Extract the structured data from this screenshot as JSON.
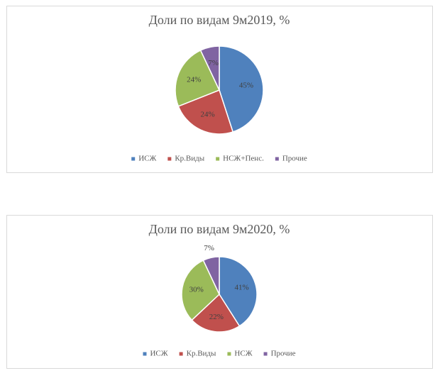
{
  "chart_data": [
    {
      "type": "pie",
      "title": "Доли по видам 9м2019, %",
      "categories": [
        "ИСЖ",
        "Кр.Виды",
        "НСЖ+Пенс.",
        "Прочие"
      ],
      "values": [
        45,
        24,
        24,
        7
      ],
      "value_labels": [
        "45%",
        "24%",
        "24%",
        "7%"
      ],
      "colors": [
        "#4f81bd",
        "#c0504d",
        "#9bbb59",
        "#8064a2"
      ],
      "legend": "bottom"
    },
    {
      "type": "pie",
      "title": "Доли по видам 9м2020, %",
      "categories": [
        "ИСЖ",
        "Кр.Виды",
        "НСЖ",
        "Прочие"
      ],
      "values": [
        41,
        22,
        30,
        7
      ],
      "value_labels": [
        "41%",
        "22%",
        "30%",
        "7%"
      ],
      "colors": [
        "#4f81bd",
        "#c0504d",
        "#9bbb59",
        "#8064a2"
      ],
      "legend": "bottom"
    }
  ]
}
